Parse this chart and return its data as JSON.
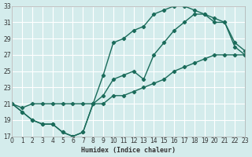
{
  "xlabel": "Humidex (Indice chaleur)",
  "bg_color": "#d4ecec",
  "grid_color": "#ffffff",
  "line_color": "#1a6b5a",
  "ylim_min": 17,
  "ylim_max": 33,
  "xlim_min": 0,
  "xlim_max": 23,
  "line1_x": [
    0,
    1,
    2,
    3,
    4,
    5,
    6,
    7,
    8,
    9,
    10,
    11,
    12,
    13,
    14,
    15,
    16,
    17,
    18,
    19,
    20,
    21,
    22,
    23
  ],
  "line1_y": [
    21,
    20,
    19,
    18.5,
    18.5,
    17.5,
    17,
    17.5,
    21,
    24.5,
    28.5,
    29,
    30,
    30.5,
    32,
    32.5,
    33,
    33,
    32.5,
    32,
    31,
    31,
    28,
    27
  ],
  "line2_x": [
    0,
    1,
    2,
    3,
    4,
    5,
    6,
    7,
    8,
    9,
    10,
    11,
    12,
    13,
    14,
    15,
    16,
    17,
    18,
    19,
    20,
    21,
    22,
    23
  ],
  "line2_y": [
    21,
    20,
    19,
    18.5,
    18.5,
    17.5,
    17,
    17.5,
    21,
    22,
    24,
    24.5,
    25,
    24,
    27,
    28.5,
    30,
    31,
    32,
    32,
    31.5,
    31,
    28.5,
    27.5
  ],
  "line3_x": [
    0,
    1,
    2,
    3,
    4,
    5,
    6,
    7,
    8,
    9,
    10,
    11,
    12,
    13,
    14,
    15,
    16,
    17,
    18,
    19,
    20,
    21,
    22,
    23
  ],
  "line3_y": [
    21,
    20.5,
    21,
    21,
    21,
    21,
    21,
    21,
    21,
    21,
    22,
    22,
    22.5,
    23,
    23.5,
    24,
    25,
    25.5,
    26,
    26.5,
    27,
    27,
    27,
    27
  ]
}
